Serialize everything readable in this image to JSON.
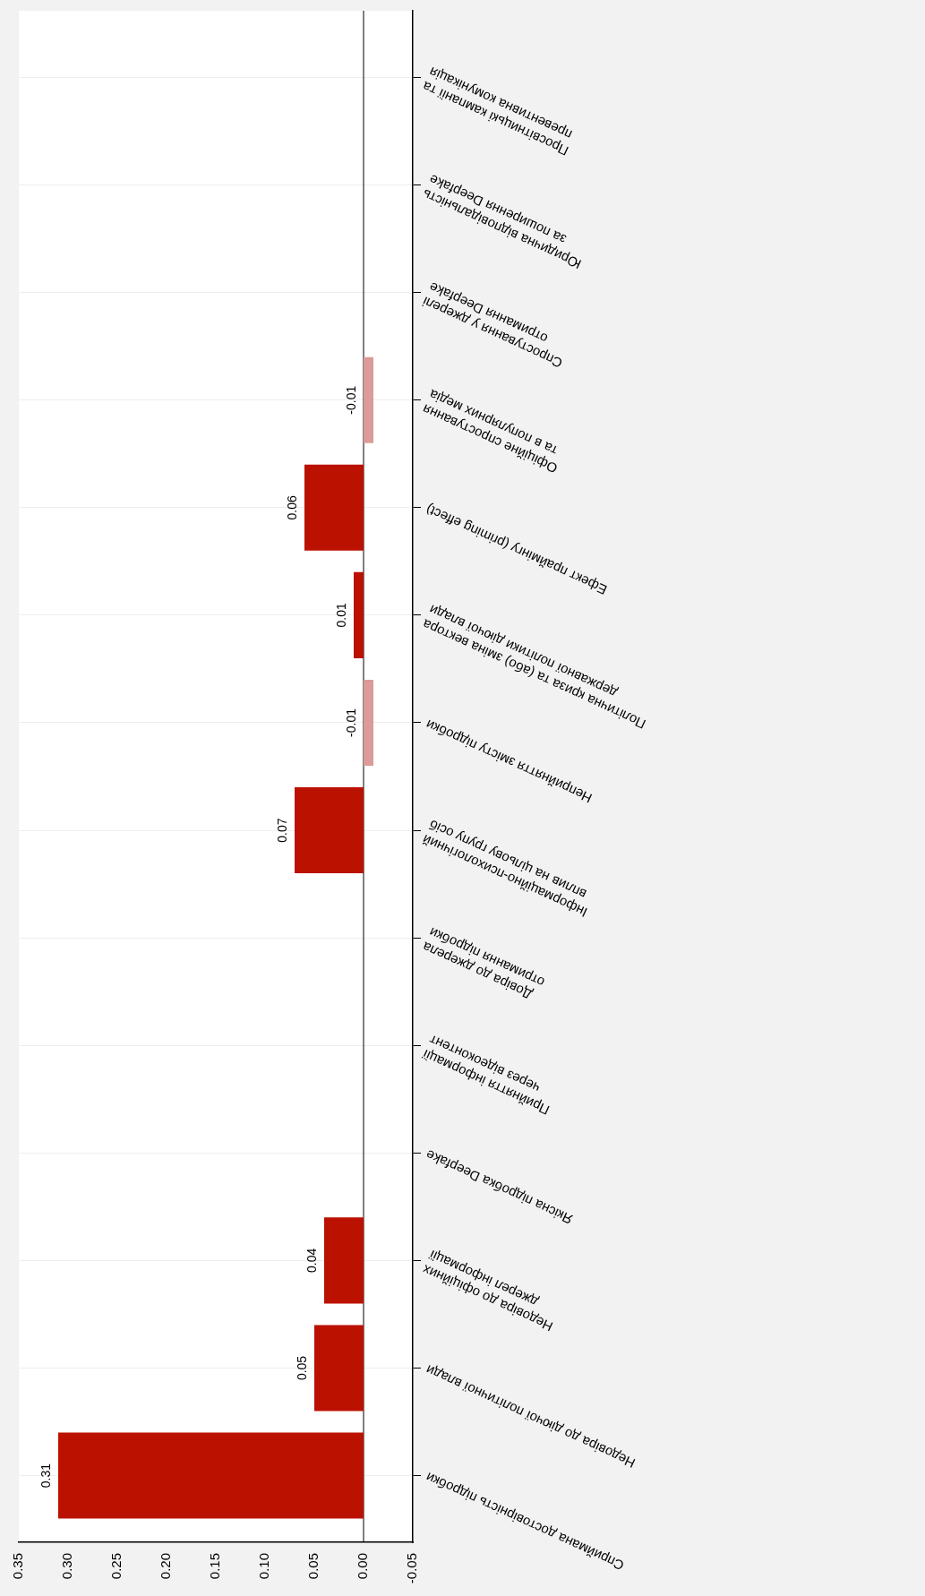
{
  "chart_data": {
    "type": "bar",
    "orientation": "horizontal",
    "categories": [
      "Просвітницькі кампанії та превентивна комунікація",
      "Юридична відповідальність за поширення Deepfake",
      "Спростування у джерелі отримання Deepfake",
      "Офіційне спростування та в популярних медіа",
      "Ефект праймінгу (priming effect)",
      "Політична криза та (або) зміна вектора державної політики діючої влади",
      "Неприйняття змісту підробки",
      "Інформаційно-психологічний вплив на цільову групу осіб",
      "Довіра до джерела отримання підробки",
      "Прийняття інформації через відеоконтент",
      "Якісна підробка Deepfake",
      "Недовіра до офіційних джерел інформації",
      "Недовіра до діючої політичної влади",
      "Сприймана достовірність підробки"
    ],
    "values": [
      null,
      null,
      null,
      -0.01,
      0.06,
      0.01,
      -0.01,
      0.07,
      null,
      null,
      null,
      0.04,
      0.05,
      0.31
    ],
    "colors": [
      "#bb1100",
      "#bb1100",
      "#bb1100",
      "#dc9a98",
      "#bb1100",
      "#bb1100",
      "#dc9a98",
      "#bb1100",
      "#bb1100",
      "#bb1100",
      "#bb1100",
      "#bb1100",
      "#bb1100",
      "#bb1100"
    ],
    "xlim": [
      0.35,
      -0.05
    ],
    "xticks": [
      0.35,
      {
        "value": 0.3,
        "label": "0.30"
      },
      0.25,
      {
        "value": 0.2,
        "label": "0.20"
      },
      0.15,
      {
        "value": 0.1,
        "label": "0.10"
      },
      0.05,
      {
        "value": 0,
        "label": "0.00"
      },
      -0.05
    ],
    "ref_lines": [
      {
        "axis": "x",
        "value": 0,
        "color": "#000000"
      }
    ],
    "data_labels": true,
    "grid": "y",
    "legend": false
  }
}
